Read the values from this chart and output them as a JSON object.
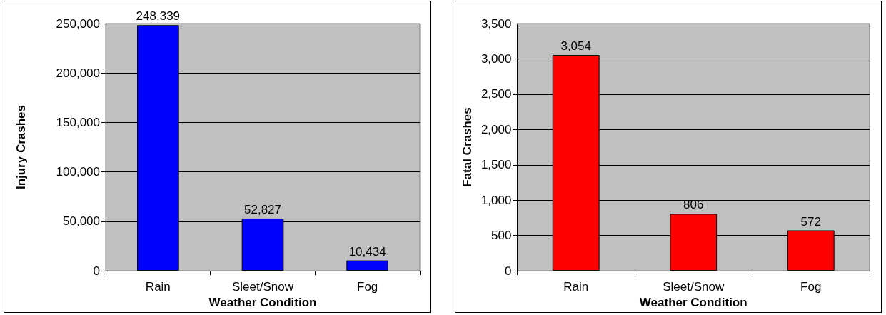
{
  "chart_data": [
    {
      "type": "bar",
      "xlabel": "Weather Condition",
      "ylabel": "Injury Crashes",
      "categories": [
        "Rain",
        "Sleet/Snow",
        "Fog"
      ],
      "series": [
        {
          "color": "#0000ff",
          "values": [
            248339,
            52827,
            10434
          ],
          "value_labels": [
            "248,339",
            "52,827",
            "10,434"
          ]
        }
      ],
      "ylim": [
        0,
        250000
      ],
      "yticks": [
        {
          "value": 0,
          "label": "0"
        },
        {
          "value": 50000,
          "label": "50,000"
        },
        {
          "value": 100000,
          "label": "100,000"
        },
        {
          "value": 150000,
          "label": "150,000"
        },
        {
          "value": 200000,
          "label": "200,000"
        },
        {
          "value": 250000,
          "label": "250,000"
        }
      ],
      "grid": "y"
    },
    {
      "type": "bar",
      "xlabel": "Weather Condition",
      "ylabel": "Fatal Crashes",
      "categories": [
        "Rain",
        "Sleet/Snow",
        "Fog"
      ],
      "series": [
        {
          "color": "#ff0000",
          "values": [
            3054,
            806,
            572
          ],
          "value_labels": [
            "3,054",
            "806",
            "572"
          ]
        }
      ],
      "ylim": [
        0,
        3500
      ],
      "yticks": [
        {
          "value": 0,
          "label": "0"
        },
        {
          "value": 500,
          "label": "500"
        },
        {
          "value": 1000,
          "label": "1,000"
        },
        {
          "value": 1500,
          "label": "1,500"
        },
        {
          "value": 2000,
          "label": "2,000"
        },
        {
          "value": 2500,
          "label": "2,500"
        },
        {
          "value": 3000,
          "label": "3,000"
        },
        {
          "value": 3500,
          "label": "3,500"
        }
      ],
      "grid": "y"
    }
  ]
}
